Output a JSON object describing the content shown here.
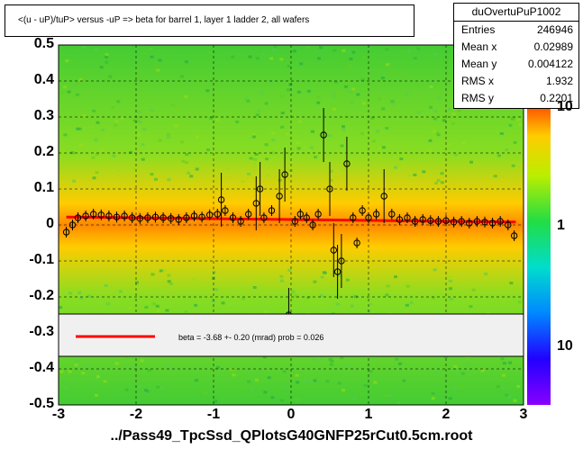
{
  "chart_data": {
    "type": "scatter",
    "title": "<(u - uP)/tuP> versus  -uP => beta for barrel 1, layer 1 ladder 2, all wafers",
    "xlabel": "",
    "ylabel": "",
    "xlim": [
      -3,
      3
    ],
    "ylim": [
      -0.5,
      0.5
    ],
    "x_ticks": [
      "-3",
      "-2",
      "-1",
      "0",
      "1",
      "2",
      "3"
    ],
    "y_ticks": [
      "-0.5",
      "-0.4",
      "-0.3",
      "-0.2",
      "-0.1",
      "0",
      "0.1",
      "0.2",
      "0.3",
      "0.4",
      "0.5"
    ],
    "z_ticks": [
      "10",
      "1",
      "10"
    ],
    "grid": true,
    "stats": {
      "name": "duOvertuPuP1002",
      "rows": [
        {
          "key": "Entries",
          "value": "246946"
        },
        {
          "key": "Mean x",
          "value": "0.02989"
        },
        {
          "key": "Mean y",
          "value": "0.004122"
        },
        {
          "key": "RMS x",
          "value": "1.932"
        },
        {
          "key": "RMS y",
          "value": "0.2201"
        }
      ]
    },
    "legend": {
      "label": "beta =   -3.68 +-  0.20 (mrad) prob = 0.026",
      "color": "#ff0000"
    },
    "fit_line": {
      "x": [
        -2.9,
        2.9
      ],
      "y": [
        0.022,
        0.008
      ]
    },
    "profile_points": [
      {
        "x": -2.9,
        "y": -0.02
      },
      {
        "x": -2.82,
        "y": 0.0
      },
      {
        "x": -2.75,
        "y": 0.02
      },
      {
        "x": -2.65,
        "y": 0.025
      },
      {
        "x": -2.55,
        "y": 0.03
      },
      {
        "x": -2.45,
        "y": 0.028
      },
      {
        "x": -2.35,
        "y": 0.025
      },
      {
        "x": -2.25,
        "y": 0.022
      },
      {
        "x": -2.15,
        "y": 0.025
      },
      {
        "x": -2.05,
        "y": 0.02
      },
      {
        "x": -1.95,
        "y": 0.018
      },
      {
        "x": -1.85,
        "y": 0.02
      },
      {
        "x": -1.75,
        "y": 0.022
      },
      {
        "x": -1.65,
        "y": 0.02
      },
      {
        "x": -1.55,
        "y": 0.018
      },
      {
        "x": -1.45,
        "y": 0.015
      },
      {
        "x": -1.35,
        "y": 0.02
      },
      {
        "x": -1.25,
        "y": 0.025
      },
      {
        "x": -1.15,
        "y": 0.022
      },
      {
        "x": -1.05,
        "y": 0.028
      },
      {
        "x": -0.95,
        "y": 0.03
      },
      {
        "x": -0.9,
        "y": 0.07
      },
      {
        "x": -0.85,
        "y": 0.04
      },
      {
        "x": -0.75,
        "y": 0.02
      },
      {
        "x": -0.65,
        "y": 0.01
      },
      {
        "x": -0.55,
        "y": 0.03
      },
      {
        "x": -0.45,
        "y": 0.06
      },
      {
        "x": -0.4,
        "y": 0.1
      },
      {
        "x": -0.35,
        "y": 0.02
      },
      {
        "x": -0.25,
        "y": 0.04
      },
      {
        "x": -0.15,
        "y": 0.08
      },
      {
        "x": -0.08,
        "y": 0.14
      },
      {
        "x": -0.03,
        "y": -0.25
      },
      {
        "x": 0.05,
        "y": 0.01
      },
      {
        "x": 0.12,
        "y": 0.03
      },
      {
        "x": 0.2,
        "y": 0.02
      },
      {
        "x": 0.28,
        "y": 0.0
      },
      {
        "x": 0.35,
        "y": 0.03
      },
      {
        "x": 0.42,
        "y": 0.25
      },
      {
        "x": 0.5,
        "y": 0.1
      },
      {
        "x": 0.55,
        "y": -0.07
      },
      {
        "x": 0.6,
        "y": -0.13
      },
      {
        "x": 0.65,
        "y": -0.1
      },
      {
        "x": 0.72,
        "y": 0.17
      },
      {
        "x": 0.8,
        "y": 0.02
      },
      {
        "x": 0.85,
        "y": -0.05
      },
      {
        "x": 0.92,
        "y": 0.04
      },
      {
        "x": 1.0,
        "y": 0.02
      },
      {
        "x": 1.1,
        "y": 0.03
      },
      {
        "x": 1.2,
        "y": 0.08
      },
      {
        "x": 1.3,
        "y": 0.03
      },
      {
        "x": 1.4,
        "y": 0.015
      },
      {
        "x": 1.5,
        "y": 0.02
      },
      {
        "x": 1.6,
        "y": 0.01
      },
      {
        "x": 1.7,
        "y": 0.015
      },
      {
        "x": 1.8,
        "y": 0.012
      },
      {
        "x": 1.9,
        "y": 0.01
      },
      {
        "x": 2.0,
        "y": 0.012
      },
      {
        "x": 2.1,
        "y": 0.008
      },
      {
        "x": 2.2,
        "y": 0.01
      },
      {
        "x": 2.3,
        "y": 0.005
      },
      {
        "x": 2.4,
        "y": 0.01
      },
      {
        "x": 2.5,
        "y": 0.008
      },
      {
        "x": 2.6,
        "y": 0.005
      },
      {
        "x": 2.7,
        "y": 0.01
      },
      {
        "x": 2.8,
        "y": 0.0
      },
      {
        "x": 2.88,
        "y": -0.03
      }
    ]
  },
  "footer": "../Pass49_TpcSsd_QPlotsG40GNFP25rCut0.5cm.root"
}
